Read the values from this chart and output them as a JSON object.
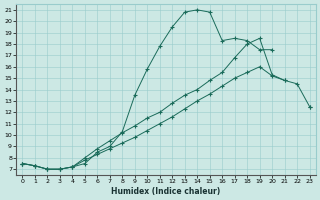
{
  "xlabel": "Humidex (Indice chaleur)",
  "bg_color": "#cce8e4",
  "line_color": "#1a6b5a",
  "ylim_min": 6.5,
  "ylim_max": 21.5,
  "xlim_min": -0.5,
  "xlim_max": 23.5,
  "yticks": [
    7,
    8,
    9,
    10,
    11,
    12,
    13,
    14,
    15,
    16,
    17,
    18,
    19,
    20,
    21
  ],
  "xticks": [
    0,
    1,
    2,
    3,
    4,
    5,
    6,
    7,
    8,
    9,
    10,
    11,
    12,
    13,
    14,
    15,
    16,
    17,
    18,
    19,
    20,
    21,
    22,
    23
  ],
  "line1_x": [
    0,
    1,
    2,
    3,
    4,
    5,
    6,
    7,
    8,
    9,
    10,
    11,
    12,
    13,
    14,
    15,
    16,
    17,
    18,
    19,
    20,
    21,
    22,
    23
  ],
  "line1_y": [
    7.5,
    7.3,
    7.0,
    7.0,
    7.2,
    7.5,
    8.5,
    9.0,
    10.3,
    13.5,
    15.8,
    17.8,
    19.5,
    20.8,
    21.0,
    20.8,
    18.3,
    18.5,
    18.3,
    17.5,
    17.5,
    null,
    null,
    null
  ],
  "line2_x": [
    0,
    1,
    2,
    3,
    4,
    5,
    6,
    7,
    8,
    9,
    10,
    11,
    12,
    13,
    14,
    15,
    16,
    17,
    18,
    19,
    20,
    21,
    22,
    23
  ],
  "line2_y": [
    7.5,
    7.3,
    7.0,
    7.0,
    7.2,
    7.8,
    8.3,
    8.8,
    9.3,
    9.8,
    10.4,
    11.0,
    11.6,
    12.3,
    13.0,
    13.6,
    14.3,
    15.0,
    15.5,
    16.0,
    15.2,
    14.8,
    null,
    12.5
  ],
  "line3_x": [
    0,
    1,
    2,
    3,
    4,
    5,
    6,
    7,
    8,
    9,
    10,
    11,
    12,
    13,
    14,
    15,
    16,
    17,
    18,
    19,
    20,
    21,
    22,
    23
  ],
  "line3_y": [
    7.5,
    7.3,
    7.0,
    7.0,
    7.2,
    8.0,
    8.8,
    9.5,
    10.2,
    10.8,
    11.5,
    12.0,
    12.8,
    13.5,
    14.0,
    14.8,
    15.5,
    16.8,
    18.0,
    18.5,
    15.3,
    14.8,
    14.5,
    12.5
  ]
}
